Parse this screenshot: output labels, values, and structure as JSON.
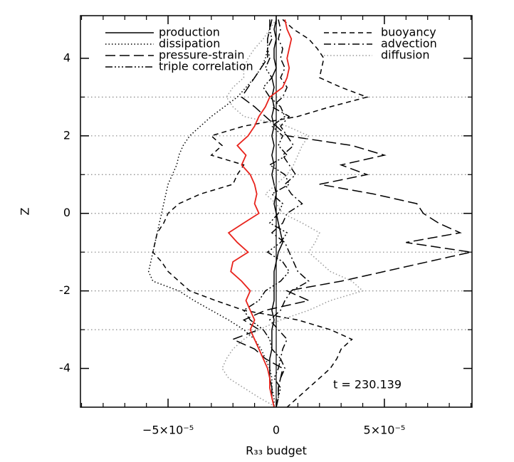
{
  "chart_data": {
    "type": "profile",
    "xlabel": "R₃₃ budget",
    "ylabel": "Z",
    "annotation": "t = 230.139",
    "xlim": [
      -9.05e-05,
      9.05e-05
    ],
    "ylim": [
      -5,
      5.1
    ],
    "xticks": [
      {
        "value": -5e-05,
        "label": "−5×10⁻⁵"
      },
      0,
      {
        "value": 5e-05,
        "label": "5×10⁻⁵"
      }
    ],
    "xminor": [
      -9e-05,
      -8e-05,
      -7e-05,
      -6e-05,
      -4e-05,
      -3e-05,
      -2e-05,
      -1e-05,
      1e-05,
      2e-05,
      3e-05,
      4e-05,
      6e-05,
      7e-05,
      8e-05,
      9e-05
    ],
    "yticks": [
      -4,
      -2,
      0,
      2,
      4
    ],
    "yminor": [
      -3,
      -1,
      1,
      3
    ],
    "grid_lines": [
      -3,
      -2,
      -1,
      0,
      1,
      2,
      3
    ],
    "vline": 0,
    "legend": "top",
    "y": [
      5,
      4.75,
      4.5,
      4.25,
      4,
      3.75,
      3.5,
      3.25,
      3,
      2.75,
      2.5,
      2.25,
      2,
      1.75,
      1.5,
      1.25,
      1,
      0.75,
      0.5,
      0.25,
      0,
      -0.25,
      -0.5,
      -0.75,
      -1,
      -1.25,
      -1.5,
      -1.75,
      -2,
      -2.25,
      -2.5,
      -2.75,
      -3,
      -3.25,
      -3.5,
      -3.75,
      -4,
      -4.25,
      -4.5,
      -4.75,
      -5
    ],
    "series": [
      {
        "name": "production",
        "color": "#000000",
        "dash": "solid",
        "column": 0,
        "values": [
          0.0,
          -1e-06,
          0.0,
          -1e-06,
          -1e-06,
          0.0,
          -2e-06,
          -1e-06,
          -2e-06,
          -1e-06,
          -2e-06,
          -1e-06,
          -2e-06,
          -1e-06,
          -2e-06,
          -1e-06,
          -2e-06,
          -1e-06,
          0.0,
          -1e-06,
          0.0,
          1e-06,
          2e-06,
          3e-06,
          1e-06,
          0.0,
          -1e-06,
          -1e-06,
          -1e-06,
          -1e-06,
          -2e-06,
          -1e-06,
          -2e-06,
          -2e-06,
          -2e-06,
          -3e-06,
          -3e-06,
          -3e-06,
          -2e-06,
          -2e-06,
          -1e-06
        ]
      },
      {
        "name": "dissipation",
        "color": "#000000",
        "dash": "dotted",
        "column": 0,
        "values": [
          -2e-06,
          -3e-06,
          -4e-06,
          -4e-06,
          -5e-06,
          -7e-06,
          -1e-05,
          -1.4e-05,
          -1.8e-05,
          -2.4e-05,
          -3e-05,
          -3.5e-05,
          -4e-05,
          -4.3e-05,
          -4.5e-05,
          -4.6e-05,
          -4.8e-05,
          -5e-05,
          -5.1e-05,
          -5.2e-05,
          -5.3e-05,
          -5.4e-05,
          -5.5e-05,
          -5.6e-05,
          -5.7e-05,
          -5.8e-05,
          -5.9e-05,
          -5.7e-05,
          -4.5e-05,
          -3.8e-05,
          -3e-05,
          -2.2e-05,
          -1.5e-05,
          -1e-05,
          -7e-06,
          -5e-06,
          -3e-06,
          -2e-06,
          -2e-06,
          -1e-06,
          -1e-06
        ]
      },
      {
        "name": "pressure-strain",
        "color": "#000000",
        "dash": "longdash",
        "column": 0,
        "values": [
          -3e-06,
          -3e-06,
          -4e-06,
          -4e-06,
          -4e-06,
          -7e-06,
          -1e-05,
          -1.3e-05,
          -1.6e-05,
          -1e-05,
          -5e-06,
          0.0,
          5e-06,
          3.5e-05,
          5e-05,
          3e-05,
          4.2e-05,
          2e-05,
          4.5e-05,
          6.5e-05,
          6.8e-05,
          7.5e-05,
          8.5e-05,
          6e-05,
          9e-05,
          7e-05,
          5e-05,
          3e-05,
          5e-06,
          1.5e-05,
          -5e-06,
          -1.5e-05,
          -8e-06,
          -2e-05,
          -1e-05,
          -5e-06,
          3e-06,
          2e-06,
          1e-06,
          1e-06,
          0.0
        ]
      },
      {
        "name": "triple correlation",
        "color": "#000000",
        "dash": "dashdotdot",
        "column": 0,
        "values": [
          -2e-06,
          -3e-06,
          -2e-06,
          -4e-06,
          -3e-06,
          -5e-06,
          -2e-06,
          -6e-06,
          -3e-06,
          2e-06,
          4e-06,
          -2e-06,
          3e-06,
          1e-06,
          5e-06,
          -3e-06,
          4e-06,
          6e-06,
          -2e-06,
          3e-06,
          1e-06,
          -3e-06,
          5e-06,
          2e-06,
          -4e-06,
          3e-06,
          6e-06,
          2e-06,
          -5e-06,
          -8e-06,
          -1.5e-05,
          -1.2e-05,
          -6e-06,
          -3e-06,
          -2e-06,
          2e-06,
          1e-06,
          -1e-06,
          2e-06,
          1e-06,
          0.0
        ]
      },
      {
        "name": "buoyancy",
        "color": "#000000",
        "dash": "dash",
        "column": 1,
        "values": [
          3e-06,
          8e-06,
          1.5e-05,
          1.9e-05,
          2.2e-05,
          2.1e-05,
          2e-05,
          3e-05,
          4.2e-05,
          2.5e-05,
          1e-05,
          -1.5e-05,
          -3e-05,
          -2.5e-05,
          -3e-05,
          -1.5e-05,
          -1.8e-05,
          -2e-05,
          -3.5e-05,
          -4.5e-05,
          -5e-05,
          -5.2e-05,
          -5.5e-05,
          -5.6e-05,
          -5.7e-05,
          -5.3e-05,
          -5e-05,
          -4.5e-05,
          -4e-05,
          -2.8e-05,
          -1.5e-05,
          1e-05,
          2.5e-05,
          3.5e-05,
          3e-05,
          2.8e-05,
          2.5e-05,
          2e-05,
          1.5e-05,
          1e-05,
          5e-06
        ]
      },
      {
        "name": "advection",
        "color": "#000000",
        "dash": "dashdot",
        "column": 1,
        "values": [
          1e-06,
          2e-06,
          1e-06,
          3e-06,
          2e-06,
          4e-06,
          2e-06,
          5e-06,
          3e-06,
          -2e-06,
          6e-06,
          2e-06,
          5e-06,
          8e-06,
          3e-06,
          6e-06,
          9e-06,
          4e-06,
          7e-06,
          1.2e-05,
          5e-06,
          3e-06,
          -2e-06,
          4e-06,
          6e-06,
          8e-06,
          1e-05,
          1.5e-05,
          7e-06,
          4e-06,
          2e-06,
          -3e-06,
          1e-06,
          5e-06,
          3e-06,
          2e-06,
          4e-06,
          2e-06,
          1e-06,
          1e-06,
          0.0
        ]
      },
      {
        "name": "diffusion",
        "color": "#999999",
        "dash": "dotted",
        "column": 1,
        "values": [
          0.0,
          -3e-06,
          -6e-06,
          -1e-05,
          -1.3e-05,
          -1.5e-05,
          -1.5e-05,
          -2e-05,
          -2.3e-05,
          -2e-05,
          -1.5e-05,
          5e-06,
          1.5e-05,
          1.2e-05,
          1e-05,
          8e-06,
          5e-06,
          0.0,
          -5e-06,
          0.0,
          3e-06,
          1.2e-05,
          2e-05,
          1.8e-05,
          1.5e-05,
          2e-05,
          2.5e-05,
          3.5e-05,
          4e-05,
          2.5e-05,
          1.5e-05,
          2e-06,
          -8e-06,
          -1.5e-05,
          -2e-05,
          -2.3e-05,
          -2.5e-05,
          -2.2e-05,
          -1.5e-05,
          -8e-06,
          0.0
        ]
      },
      {
        "color": "#e8231c",
        "dash": "solid",
        "values": [
          4e-06,
          5e-06,
          7e-06,
          6e-06,
          5e-06,
          6e-06,
          5e-06,
          3e-06,
          -3e-06,
          -5e-06,
          -8e-06,
          -1e-05,
          -1.3e-05,
          -1.8e-05,
          -1.4e-05,
          -1.6e-05,
          -1.2e-05,
          -1e-05,
          -9e-06,
          -1e-05,
          -8e-06,
          -1.5e-05,
          -2.2e-05,
          -1.8e-05,
          -1.3e-05,
          -2e-05,
          -2.1e-05,
          -1.6e-05,
          -1.2e-05,
          -1.4e-05,
          -1.2e-05,
          -1e-05,
          -1.2e-05,
          -1e-05,
          -8e-06,
          -6e-06,
          -4e-06,
          -3e-06,
          -3e-06,
          -2e-06,
          -1e-06
        ]
      }
    ]
  }
}
